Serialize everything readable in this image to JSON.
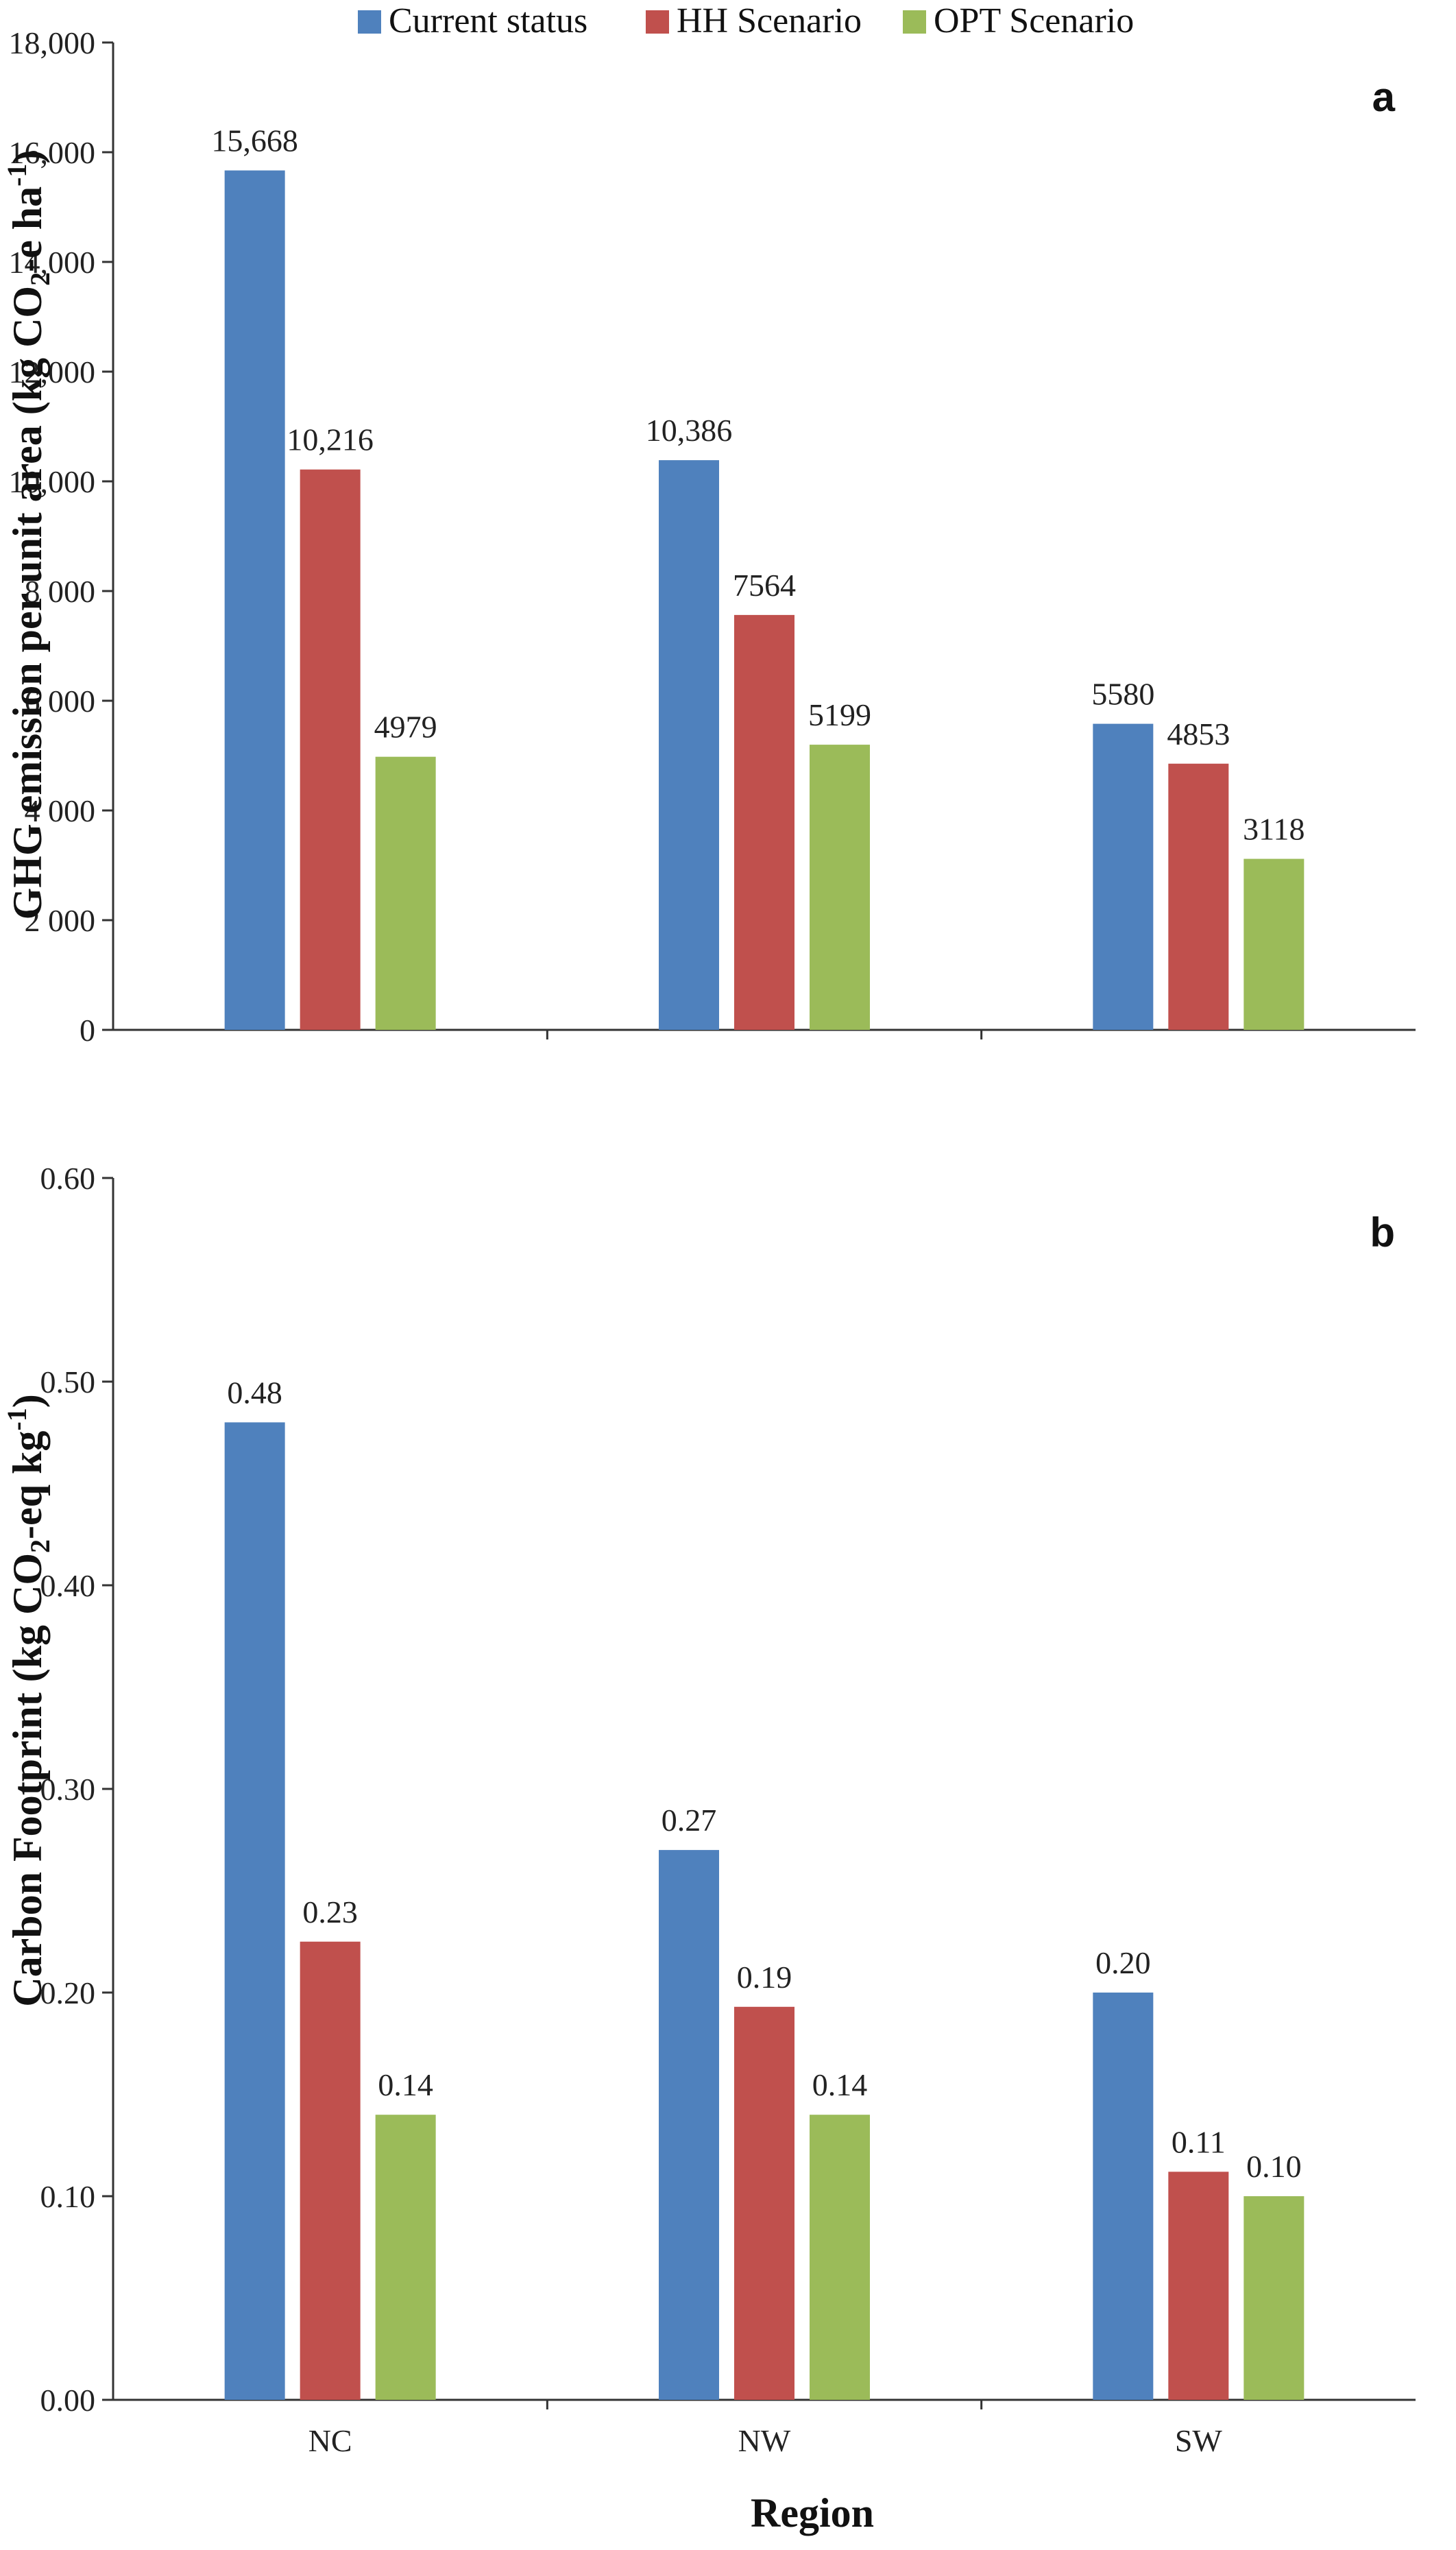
{
  "legend": [
    {
      "name": "Current status",
      "color": "#4f81bd"
    },
    {
      "name": "HH Scenario",
      "color": "#c0504d"
    },
    {
      "name": "OPT Scenario",
      "color": "#9bbb59"
    }
  ],
  "chart_data": [
    {
      "type": "bar",
      "panel_label": "a",
      "categories": [
        "NC",
        "NW",
        "SW"
      ],
      "series": [
        {
          "name": "Current status",
          "values": [
            15668,
            10386,
            5580
          ],
          "labels": [
            "15,668",
            "10,386",
            "5580"
          ]
        },
        {
          "name": "HH Scenario",
          "values": [
            10216,
            7564,
            4853
          ],
          "labels": [
            "10,216",
            "7564",
            "4853"
          ]
        },
        {
          "name": "OPT Scenario",
          "values": [
            4979,
            5199,
            3118
          ],
          "labels": [
            "4979",
            "5199",
            "3118"
          ]
        }
      ],
      "ylim": [
        0,
        18000
      ],
      "yticks": [
        0,
        2000,
        4000,
        6000,
        8000,
        10000,
        12000,
        14000,
        16000,
        18000
      ],
      "ytick_labels": [
        "0",
        "2 000",
        "4 000",
        "6 000",
        "8 000",
        "10,000",
        "12,000",
        "14,000",
        "16,000",
        "18,000"
      ],
      "ylabel_parts": [
        "GHG emission per unit area (kg CO",
        "2",
        "-e ha",
        "-1",
        ")"
      ],
      "xlabel": "",
      "grid": false,
      "legend": "top"
    },
    {
      "type": "bar",
      "panel_label": "b",
      "categories": [
        "NC",
        "NW",
        "SW"
      ],
      "series": [
        {
          "name": "Current status",
          "values": [
            0.48,
            0.27,
            0.2
          ],
          "labels": [
            "0.48",
            "0.27",
            "0.20"
          ]
        },
        {
          "name": "HH Scenario",
          "values": [
            0.225,
            0.193,
            0.112
          ],
          "labels": [
            "0.23",
            "0.19",
            "0.11"
          ]
        },
        {
          "name": "OPT Scenario",
          "values": [
            0.14,
            0.14,
            0.1
          ],
          "labels": [
            "0.14",
            "0.14",
            "0.10"
          ]
        }
      ],
      "ylim": [
        0,
        0.6
      ],
      "yticks": [
        0,
        0.1,
        0.2,
        0.3,
        0.4,
        0.5,
        0.6
      ],
      "ytick_labels": [
        "0.00",
        "0.10",
        "0.20",
        "0.30",
        "0.40",
        "0.50",
        "0.60"
      ],
      "ylabel_parts": [
        "Carbon Footprint (kg CO",
        "2",
        "-eq kg",
        "-1",
        ")"
      ],
      "xlabel": "Region",
      "grid": false,
      "legend": "none"
    }
  ]
}
